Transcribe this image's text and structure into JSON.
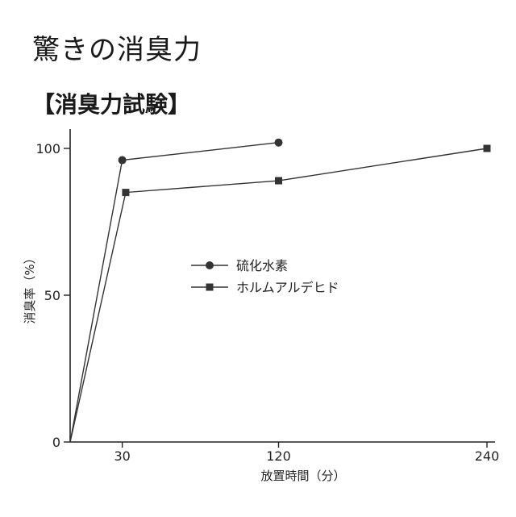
{
  "page": {
    "title": "驚きの消臭力",
    "subtitle": "【消臭力試験】"
  },
  "chart_data": {
    "type": "line",
    "title": "",
    "xlabel": "放置時間（分）",
    "ylabel": "消臭率（%）",
    "x_ticks": [
      30,
      120,
      240
    ],
    "y_ticks": [
      0,
      50,
      100
    ],
    "xlim": [
      0,
      240
    ],
    "ylim": [
      0,
      100
    ],
    "grid": false,
    "legend_position": "center",
    "series": [
      {
        "name": "硫化水素",
        "marker": "circle",
        "color": "#333333",
        "points": [
          [
            0,
            0
          ],
          [
            30,
            96
          ],
          [
            120,
            102
          ]
        ]
      },
      {
        "name": "ホルムアルデヒド",
        "marker": "square",
        "color": "#333333",
        "points": [
          [
            0,
            0
          ],
          [
            32,
            85
          ],
          [
            120,
            89
          ],
          [
            240,
            100
          ]
        ]
      }
    ]
  }
}
